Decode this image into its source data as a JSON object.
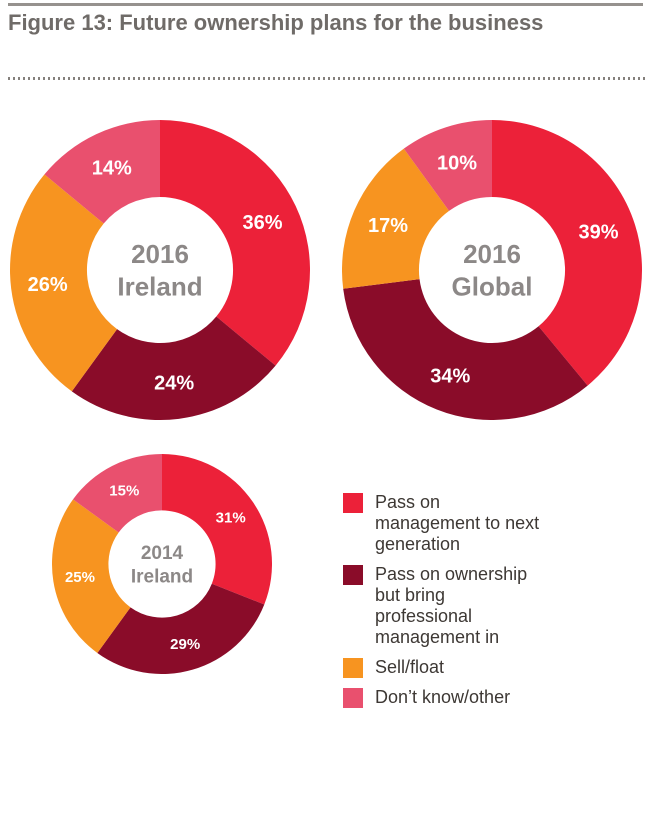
{
  "header": {
    "title": "Figure 13: Future ownership plans for the business"
  },
  "chart_data": [
    {
      "type": "pie",
      "subtype": "donut",
      "name": "2016 Ireland",
      "center_label": [
        "2016",
        "Ireland"
      ],
      "start_angle_deg": 0,
      "direction": "clockwise",
      "segments": [
        {
          "label": "Pass on management to next generation",
          "value": 36,
          "unit": "%",
          "color": "#EC2139"
        },
        {
          "label": "Pass on ownership but bring professional management in",
          "value": 24,
          "unit": "%",
          "color": "#8A0C29"
        },
        {
          "label": "Sell/float",
          "value": 26,
          "unit": "%",
          "color": "#F79420"
        },
        {
          "label": "Don’t know/other",
          "value": 14,
          "unit": "%",
          "color": "#E9506E"
        }
      ]
    },
    {
      "type": "pie",
      "subtype": "donut",
      "name": "2016 Global",
      "center_label": [
        "2016",
        "Global"
      ],
      "start_angle_deg": 0,
      "direction": "clockwise",
      "segments": [
        {
          "label": "Pass on management to next generation",
          "value": 39,
          "unit": "%",
          "color": "#EC2139"
        },
        {
          "label": "Pass on ownership but bring professional management in",
          "value": 34,
          "unit": "%",
          "color": "#8A0C29"
        },
        {
          "label": "Sell/float",
          "value": 17,
          "unit": "%",
          "color": "#F79420"
        },
        {
          "label": "Don’t know/other",
          "value": 10,
          "unit": "%",
          "color": "#E9506E"
        }
      ]
    },
    {
      "type": "pie",
      "subtype": "donut",
      "name": "2014 Ireland",
      "center_label": [
        "2014",
        "Ireland"
      ],
      "start_angle_deg": 0,
      "direction": "clockwise",
      "segments": [
        {
          "label": "Pass on management to next generation",
          "value": 31,
          "unit": "%",
          "color": "#EC2139"
        },
        {
          "label": "Pass on ownership but bring professional management in",
          "value": 29,
          "unit": "%",
          "color": "#8A0C29"
        },
        {
          "label": "Sell/float",
          "value": 25,
          "unit": "%",
          "color": "#F79420"
        },
        {
          "label": "Don’t know/other",
          "value": 15,
          "unit": "%",
          "color": "#E9506E"
        }
      ]
    }
  ],
  "legend": {
    "items": [
      {
        "label": "Pass on management to next generation",
        "color": "#EC2139"
      },
      {
        "label": "Pass on ownership but bring professional management in",
        "color": "#8A0C29"
      },
      {
        "label": "Sell/float",
        "color": "#F79420"
      },
      {
        "label": "Don’t know/other",
        "color": "#E9506E"
      }
    ]
  },
  "colors": {
    "red": "#EC2139",
    "dark_red": "#8A0C29",
    "orange": "#F79420",
    "pink": "#E9506E",
    "title_gray": "#6F6B68",
    "center_text_gray": "#8C8887",
    "legend_text": "#3D3834",
    "rule_gray": "#96928E"
  }
}
